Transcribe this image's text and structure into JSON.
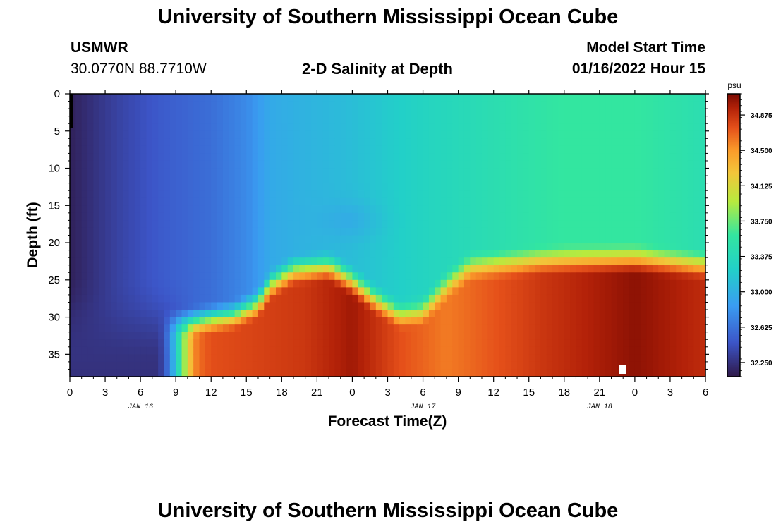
{
  "header": {
    "title": "University of Southern Mississippi Ocean Cube",
    "station": "USMWR",
    "coords": "30.0770N  88.7710W",
    "subtitle": "2-D Salinity at Depth",
    "start_label": "Model Start Time",
    "start_value": "01/16/2022 Hour 15"
  },
  "footer": {
    "title": "University of Southern Mississippi Ocean Cube"
  },
  "chart_data": {
    "type": "heatmap",
    "title": "2-D Salinity at Depth",
    "xlabel": "Forecast Time(Z)",
    "ylabel": "Depth (ft)",
    "x_tick_labels": [
      "0",
      "3",
      "6",
      "9",
      "12",
      "15",
      "18",
      "21",
      "0",
      "3",
      "6",
      "9",
      "12",
      "15",
      "18",
      "21",
      "0",
      "3",
      "6"
    ],
    "date_labels": [
      {
        "label": "JAN 16",
        "at_tick": 2
      },
      {
        "label": "JAN 17",
        "at_tick": 10
      },
      {
        "label": "JAN 18",
        "at_tick": 15
      }
    ],
    "x_range_hours": [
      0,
      54
    ],
    "y_ticks": [
      0,
      5,
      10,
      15,
      20,
      25,
      30,
      35
    ],
    "y_range_ft": [
      0,
      38
    ],
    "colorbar": {
      "unit": "psu",
      "ticks": [
        "34.875",
        "34.500",
        "34.125",
        "33.750",
        "33.375",
        "33.000",
        "32.625",
        "32.250"
      ],
      "range": [
        32.1,
        35.1
      ]
    },
    "colors": {
      "low": "#2f1848",
      "mid": "#33e6a0",
      "high": "#7a0a02"
    },
    "salinity_profile_summary": {
      "surface_0_20ft": "increases from ~32.2 psu at hour 0 to ~33.6 psu by hour 54",
      "bottom_22_38ft": "~32.3 psu for hours 0-6, rises sharply to ~34.8 psu after hour 10, remains ~34.7-35.0 psu through hour 54"
    }
  }
}
